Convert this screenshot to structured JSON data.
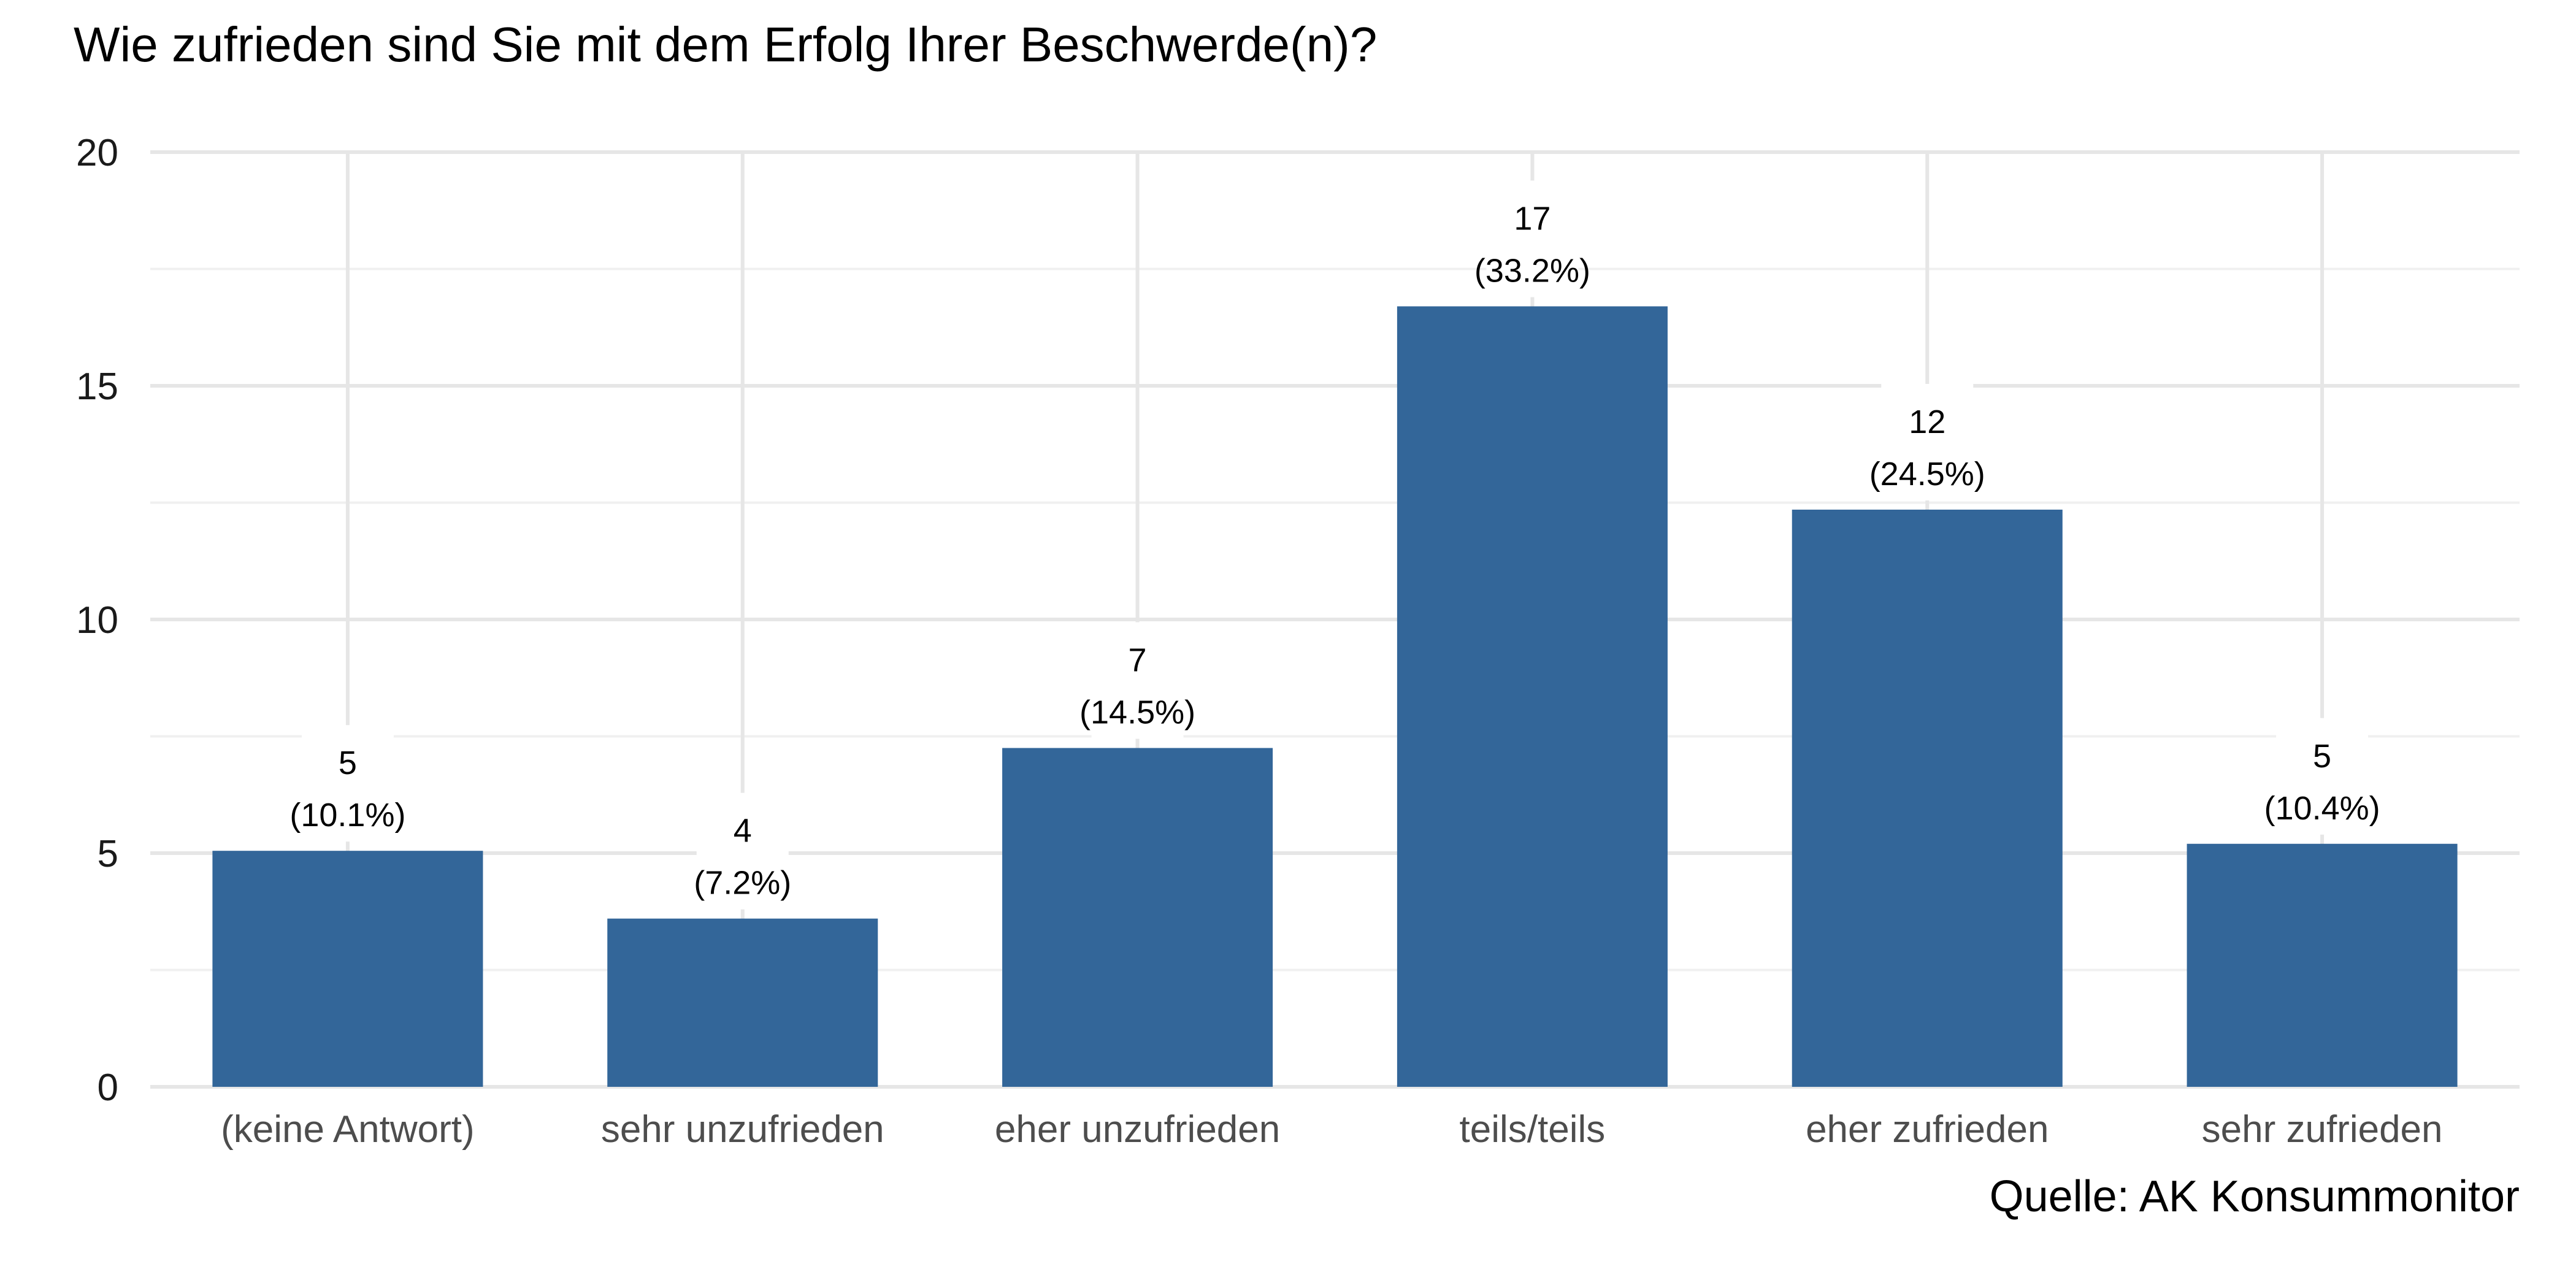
{
  "chart_data": {
    "type": "bar",
    "title": "Wie zufrieden sind Sie mit dem Erfolg Ihrer Beschwerde(n)?",
    "caption": "Quelle: AK Konsummonitor",
    "xlabel": "",
    "ylabel": "",
    "ylim": [
      0,
      20
    ],
    "yticks": [
      0,
      5,
      10,
      15,
      20
    ],
    "grid": true,
    "bar_color": "#336699",
    "categories": [
      "(keine Antwort)",
      "sehr unzufrieden",
      "eher unzufrieden",
      "teils/teils",
      "eher zufrieden",
      "sehr zufrieden"
    ],
    "values": [
      5.05,
      3.6,
      7.25,
      16.7,
      12.35,
      5.2
    ],
    "labels": [
      {
        "count": "5",
        "pct": "(10.1%)"
      },
      {
        "count": "4",
        "pct": "(7.2%)"
      },
      {
        "count": "7",
        "pct": "(14.5%)"
      },
      {
        "count": "17",
        "pct": "(33.2%)"
      },
      {
        "count": "12",
        "pct": "(24.5%)"
      },
      {
        "count": "5",
        "pct": "(10.4%)"
      }
    ]
  }
}
